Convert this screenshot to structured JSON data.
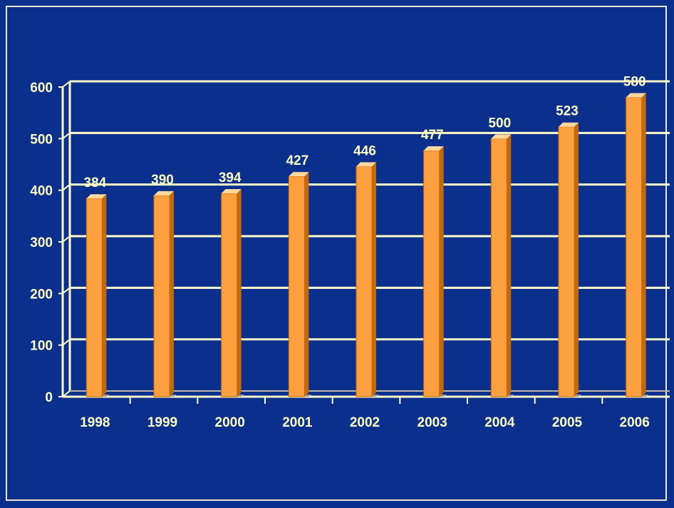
{
  "colors": {
    "background": "#0a2f8c",
    "frame": "#e8e8d8",
    "grid": "#fffcc8",
    "bar_front": "#ffa040",
    "bar_top": "#ffd8a0",
    "bar_side": "#c06a10",
    "text": "#ffffc0"
  },
  "chart_data": {
    "type": "bar",
    "categories": [
      "1998",
      "1999",
      "2000",
      "2001",
      "2002",
      "2003",
      "2004",
      "2005",
      "2006"
    ],
    "category_labels": [
      "1998",
      "1999",
      "2000",
      "2001",
      "2002",
      "2003",
      "2004",
      "2005",
      "2006"
    ],
    "values": [
      384,
      390,
      394,
      427,
      446,
      477,
      500,
      523,
      580
    ],
    "data_labels": [
      "384",
      "390",
      "394",
      "427",
      "446",
      "477",
      "500",
      "523",
      "580"
    ],
    "y_ticks": [
      0,
      100,
      200,
      300,
      400,
      500,
      600
    ],
    "ylim": [
      0,
      600
    ],
    "grid": true,
    "style": "3d-column",
    "legend": "none"
  }
}
